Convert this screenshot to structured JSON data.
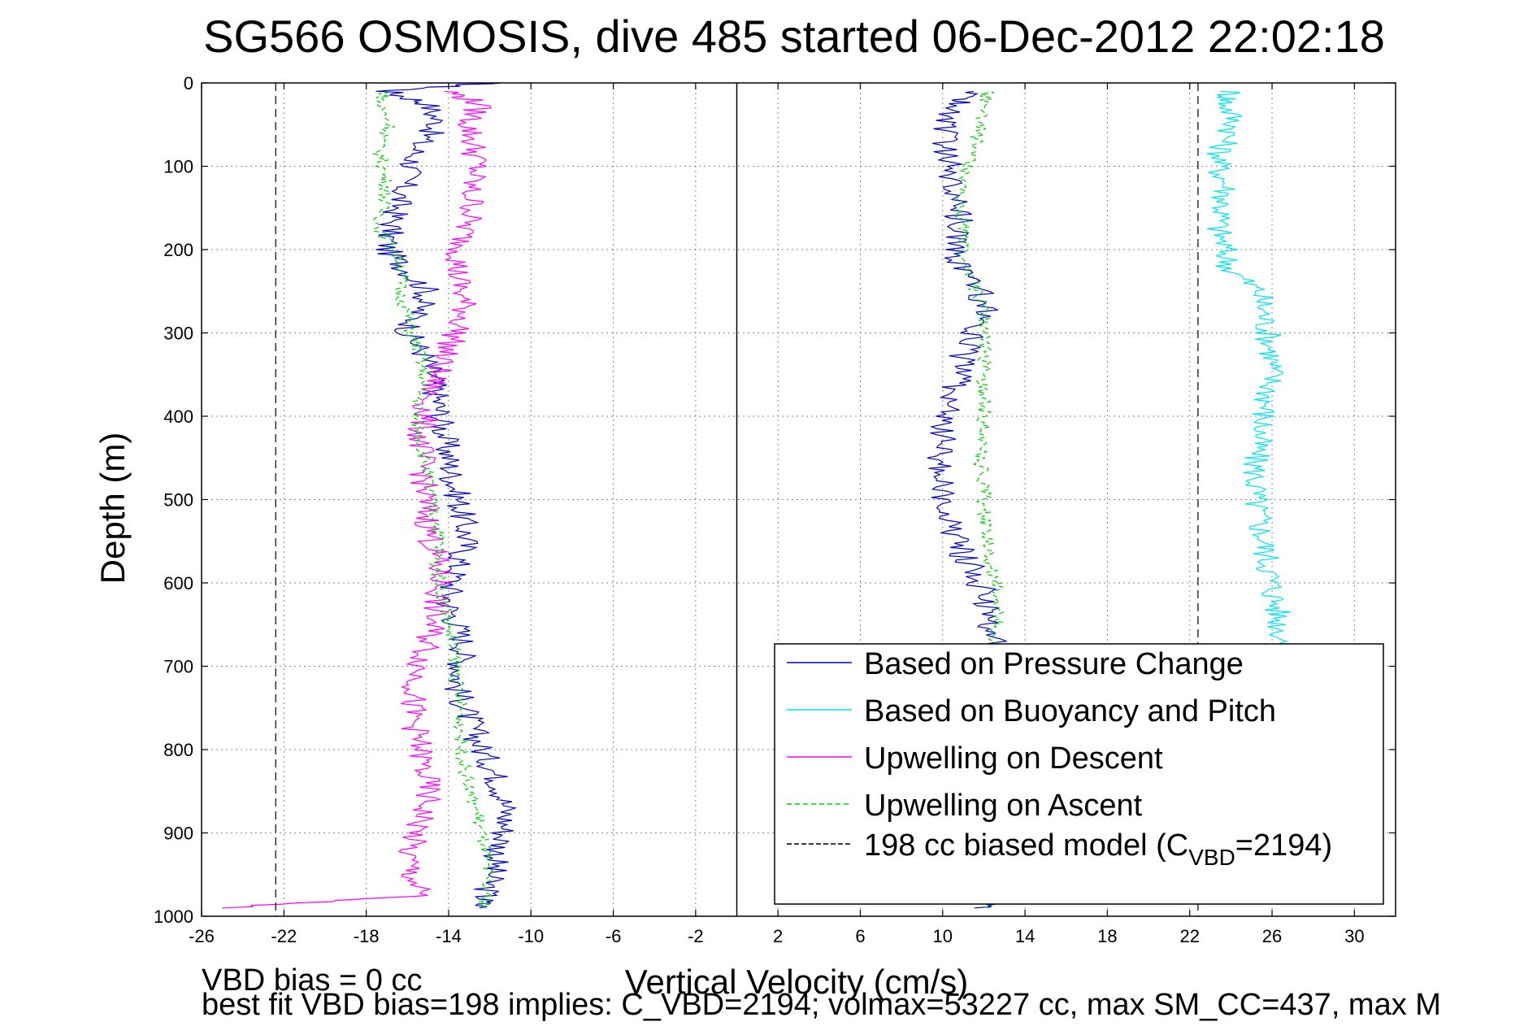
{
  "chart_data": {
    "type": "line",
    "title": "SG566 OSMOSIS, dive 485 started 06-Dec-2012 22:02:18",
    "xlabel": "Vertical Velocity (cm/s)",
    "ylabel": "Depth (m)",
    "xlim": [
      -26,
      32
    ],
    "ylim": [
      0,
      1000
    ],
    "y_reversed": true,
    "grid": true,
    "legend_position": "bottom-right",
    "x_ticks": [
      -26,
      -22,
      -18,
      -14,
      -10,
      -6,
      -2,
      2,
      6,
      10,
      14,
      18,
      22,
      26,
      30
    ],
    "x_tick_labels": [
      "-26",
      "-22",
      "-18",
      "-14",
      "-10",
      "-6",
      "-2",
      "2",
      "6",
      "10",
      "14",
      "18",
      "22",
      "26",
      "30"
    ],
    "y_ticks": [
      0,
      100,
      200,
      300,
      400,
      500,
      600,
      700,
      800,
      900,
      1000
    ],
    "y_tick_labels": [
      "0",
      "100",
      "200",
      "300",
      "400",
      "500",
      "600",
      "700",
      "800",
      "900",
      "1000"
    ],
    "series": [
      {
        "name": "Based on Pressure Change",
        "color": "#0000cc",
        "style": "solid",
        "segments": [
          {
            "depth": [
              0,
              10,
              25,
              50,
              75,
              100,
              125,
              150,
              175,
              200,
              225,
              250,
              275,
              300,
              325,
              350,
              375,
              400,
              425,
              450,
              475,
              500,
              525,
              550,
              575,
              600,
              625,
              650,
              675,
              700,
              725,
              750,
              775,
              800,
              825,
              850,
              875,
              900,
              925,
              950,
              975,
              990
            ],
            "velocity": [
              -12,
              -17,
              -15,
              -14.5,
              -15.5,
              -15.8,
              -16.2,
              -16.5,
              -16.8,
              -17,
              -16,
              -15,
              -15.5,
              -16,
              -15.2,
              -14.8,
              -14.6,
              -14.4,
              -14.2,
              -14,
              -13.8,
              -13.5,
              -13.3,
              -13.1,
              -13.5,
              -13.8,
              -14,
              -13.6,
              -13.2,
              -13.4,
              -13.6,
              -13.2,
              -12.8,
              -12.4,
              -11.8,
              -11.4,
              -11.2,
              -11.3,
              -11.6,
              -11.9,
              -12.2,
              -12.5
            ]
          },
          {
            "depth": [
              990,
              975,
              950,
              925,
              900,
              875,
              850,
              825,
              800,
              775,
              750,
              725,
              700,
              675,
              650,
              625,
              600,
              575,
              550,
              525,
              500,
              475,
              450,
              425,
              400,
              375,
              350,
              325,
              300,
              275,
              250,
              225,
              200,
              175,
              150,
              125,
              100,
              75,
              50,
              25,
              10
            ],
            "velocity": [
              12,
              12,
              12,
              12,
              12,
              12,
              12,
              12,
              12,
              12,
              12,
              12,
              12,
              12.5,
              12.4,
              12.2,
              11.8,
              11.2,
              10.6,
              10.2,
              10,
              9.8,
              9.9,
              10,
              10.2,
              10.4,
              10.8,
              11,
              11.5,
              12,
              11.8,
              10.8,
              10.6,
              10.9,
              10.7,
              10.6,
              10.4,
              10,
              10.2,
              10.8,
              11.5
            ]
          }
        ]
      },
      {
        "name": "Based on Buoyancy and Pitch",
        "color": "#00e5ee",
        "style": "solid",
        "segments": [
          {
            "depth": [
              10,
              25,
              50,
              75,
              100,
              125,
              150,
              175,
              200,
              225,
              250,
              275,
              300,
              325,
              350,
              375,
              400,
              425,
              450,
              475,
              500,
              525,
              550,
              575,
              600,
              625,
              650,
              675,
              700
            ],
            "velocity": [
              24,
              23.8,
              24.2,
              23.6,
              23.4,
              23.8,
              23.6,
              23.4,
              23.7,
              24,
              25.4,
              25.6,
              25.8,
              26,
              26,
              25.8,
              25.6,
              25.4,
              25.2,
              25.2,
              25.2,
              25.4,
              25.6,
              25.8,
              26,
              26.2,
              26.4,
              26.6,
              26.6
            ]
          }
        ]
      },
      {
        "name": "Upwelling on Descent",
        "color": "#ff00ff",
        "style": "solid",
        "segments": [
          {
            "depth": [
              10,
              25,
              50,
              75,
              100,
              125,
              150,
              175,
              200,
              225,
              250,
              275,
              300,
              325,
              350,
              375,
              400,
              425,
              450,
              475,
              500,
              525,
              550,
              575,
              600,
              625,
              650,
              675,
              700,
              725,
              750,
              775,
              800,
              825,
              850,
              875,
              900,
              925,
              950,
              975,
              990
            ],
            "velocity": [
              -14,
              -12.5,
              -13,
              -12.8,
              -12.6,
              -13,
              -12.8,
              -13.2,
              -13.4,
              -13.6,
              -13.4,
              -13.2,
              -13.6,
              -14.2,
              -14.6,
              -15,
              -15.2,
              -15.4,
              -15.3,
              -15.2,
              -15.2,
              -15,
              -14.8,
              -14.6,
              -14.4,
              -14.6,
              -14.8,
              -15,
              -15.4,
              -15.6,
              -15.8,
              -15.6,
              -15.4,
              -15.2,
              -15,
              -15.2,
              -15.6,
              -16,
              -15.8,
              -15.4,
              -25
            ]
          }
        ]
      },
      {
        "name": "Upwelling on Ascent",
        "color": "#00cc00",
        "style": "dashed",
        "segments": [
          {
            "depth": [
              10,
              25,
              50,
              75,
              100,
              125,
              150,
              175,
              200,
              225,
              250,
              275,
              300,
              325,
              350,
              375,
              400,
              425,
              450,
              475,
              500,
              525,
              550,
              575,
              600,
              625,
              650,
              675,
              700,
              725,
              750,
              775,
              800,
              825,
              850,
              875,
              900,
              925,
              950,
              975,
              990
            ],
            "velocity": [
              -17,
              -17.4,
              -16.8,
              -17.4,
              -17.2,
              -17,
              -17.2,
              -17.4,
              -16.6,
              -16.2,
              -16.4,
              -16,
              -15.8,
              -15.4,
              -15.2,
              -15.4,
              -15.6,
              -15.4,
              -15.2,
              -15,
              -14.8,
              -14.6,
              -14.4,
              -14.6,
              -14.4,
              -14.2,
              -14,
              -13.8,
              -13.6,
              -13.6,
              -13.4,
              -13.4,
              -13.4,
              -13.2,
              -13,
              -12.6,
              -12.4,
              -12.2,
              -12.2,
              -12.2,
              -12.2
            ]
          },
          {
            "depth": [
              990,
              975,
              950,
              925,
              900,
              875,
              850,
              825,
              800,
              775,
              750,
              725,
              700,
              675,
              650,
              625,
              600,
              575,
              550,
              525,
              500,
              475,
              450,
              425,
              400,
              375,
              350,
              325,
              300,
              275,
              250,
              225,
              200,
              175,
              150,
              125,
              100,
              75,
              50,
              25,
              10
            ],
            "velocity": [
              12,
              12,
              12,
              12,
              12,
              12,
              12,
              12,
              12,
              12,
              12,
              12,
              12,
              12.4,
              12.6,
              12.8,
              12.6,
              12.2,
              12.1,
              12,
              12,
              12,
              11.8,
              12,
              12,
              12,
              12,
              12,
              12,
              12,
              11.6,
              11.2,
              11,
              11,
              10.8,
              11,
              11.2,
              11.6,
              11.8,
              12,
              12.2
            ]
          }
        ]
      },
      {
        "name": "198 cc biased model (C",
        "name_sub": "VBD",
        "name_suffix": "=2194)",
        "color": "#000000",
        "style": "dashed",
        "segments": [
          {
            "depth": [
              0,
              1000
            ],
            "velocity": [
              -22.4,
              -22.4
            ]
          },
          {
            "depth": [
              0,
              1000
            ],
            "velocity": [
              22.4,
              22.4
            ]
          }
        ]
      }
    ],
    "reference_line": {
      "x": 0,
      "color": "#000000"
    },
    "footnotes": [
      "VBD bias = 0 cc",
      "best fit VBD bias=198 implies: C_VBD=2194; volmax=53227 cc, max SM_CC=437, max M"
    ]
  }
}
